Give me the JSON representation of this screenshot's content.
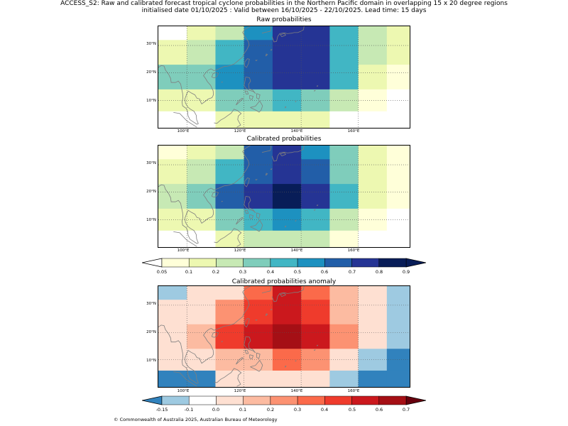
{
  "header": {
    "line1": "ACCESS_S2: Raw and calibrated forecast tropical cyclone probabilities in the Northern Pacific domain in overlapping 15 x 20 degree regions",
    "line2": "initialised date 01/10/2025 :  Valid between 16/10/2025 - 22/10/2025. Lead time: 15 days"
  },
  "axes": {
    "lat_labels": [
      "30°N",
      "20°N",
      "10°N"
    ],
    "lon_labels": [
      "100°E",
      "120°E",
      "140°E",
      "160°E"
    ]
  },
  "panels": [
    {
      "title": "Raw probabilities",
      "colormap": "prob",
      "grid_values": [
        [
          0.0,
          0.15,
          0.25,
          0.55,
          0.75,
          0.75,
          0.45,
          0.25,
          0.15
        ],
        [
          0.15,
          0.25,
          0.45,
          0.65,
          0.75,
          0.75,
          0.45,
          0.25,
          0.15
        ],
        [
          0.35,
          0.35,
          0.55,
          0.65,
          0.75,
          0.75,
          0.45,
          0.15,
          0.05
        ],
        [
          0.15,
          0.15,
          0.35,
          0.35,
          0.45,
          0.35,
          0.25,
          0.05,
          0.0
        ],
        [
          0.0,
          0.0,
          0.15,
          0.15,
          0.15,
          0.15,
          0.0,
          0.0,
          0.0
        ]
      ]
    },
    {
      "title": "Calibrated probabilities",
      "colormap": "prob",
      "grid_values": [
        [
          0.05,
          0.15,
          0.25,
          0.65,
          0.75,
          0.55,
          0.35,
          0.15,
          0.05
        ],
        [
          0.15,
          0.25,
          0.45,
          0.65,
          0.75,
          0.65,
          0.35,
          0.15,
          0.05
        ],
        [
          0.25,
          0.35,
          0.65,
          0.75,
          0.95,
          0.75,
          0.45,
          0.15,
          0.05
        ],
        [
          0.15,
          0.15,
          0.35,
          0.45,
          0.55,
          0.45,
          0.25,
          0.05,
          0.0
        ],
        [
          0.0,
          0.0,
          0.15,
          0.25,
          0.25,
          0.25,
          0.05,
          0.0,
          0.0
        ]
      ]
    },
    {
      "title": "Calibrated probabilities anomaly",
      "colormap": "anom",
      "grid_values": [
        [
          -0.125,
          0.0,
          0.05,
          0.35,
          0.55,
          0.35,
          0.15,
          0.0,
          -0.125
        ],
        [
          0.0,
          0.05,
          0.25,
          0.45,
          0.55,
          0.45,
          0.15,
          0.0,
          -0.125
        ],
        [
          0.05,
          0.15,
          0.45,
          0.55,
          0.65,
          0.55,
          0.25,
          0.0,
          -0.125
        ],
        [
          0.0,
          0.0,
          0.15,
          0.15,
          0.35,
          0.25,
          0.05,
          -0.125,
          -0.2
        ],
        [
          -0.2,
          -0.2,
          0.05,
          0.05,
          0.05,
          0.05,
          -0.125,
          -0.2,
          -0.2
        ]
      ]
    }
  ],
  "colorbars": {
    "prob": {
      "ticks": [
        "0.05",
        "0.1",
        "0.2",
        "0.3",
        "0.4",
        "0.5",
        "0.6",
        "0.7",
        "0.8",
        "0.9"
      ],
      "bounds": [
        0.05,
        0.1,
        0.2,
        0.3,
        0.4,
        0.5,
        0.6,
        0.7,
        0.8,
        0.9
      ],
      "colors": [
        "#ffffd9",
        "#edf8b1",
        "#c7e9b4",
        "#7fcdbb",
        "#41b6c4",
        "#1d91c0",
        "#225ea8",
        "#253494",
        "#081d58"
      ],
      "under": "#ffffff",
      "over": "#081d58"
    },
    "anom": {
      "ticks": [
        "-0.15",
        "-0.1",
        "0.0",
        "0.1",
        "0.2",
        "0.3",
        "0.4",
        "0.5",
        "0.6",
        "0.7"
      ],
      "bounds": [
        -0.15,
        -0.1,
        0.0,
        0.1,
        0.2,
        0.3,
        0.4,
        0.5,
        0.6,
        0.7
      ],
      "colors": [
        "#9ecae1",
        "#ffffff",
        "#fee0d2",
        "#fcbba1",
        "#fc9272",
        "#fb6a4a",
        "#ef3b2c",
        "#cb181d",
        "#a50f15"
      ],
      "under": "#3182bd",
      "over": "#67000d"
    }
  },
  "footer": {
    "copyright": "© Commonwealth of Australia 2025, Australian Bureau of Meteorology"
  }
}
